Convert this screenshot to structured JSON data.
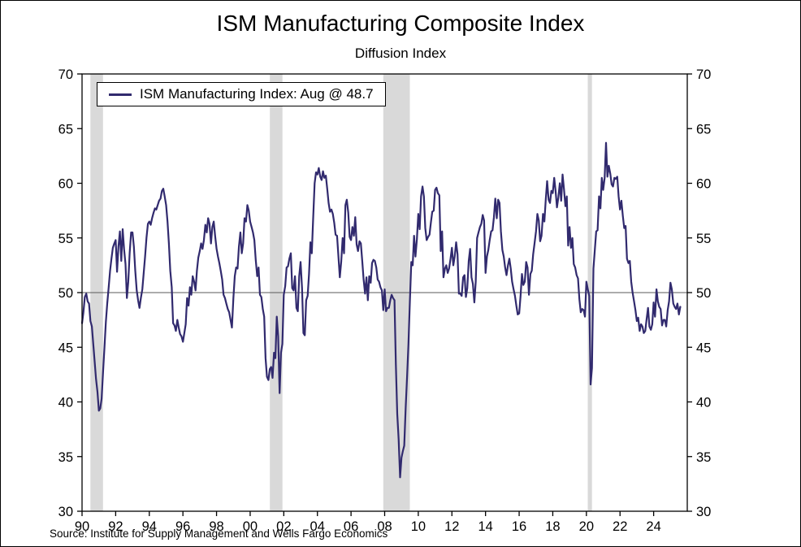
{
  "title": "ISM Manufacturing Composite Index",
  "subtitle": "Diffusion Index",
  "source": "Source: Institute for Supply Management and Wells Fargo Economics",
  "legend": {
    "label": "ISM Manufacturing Index: Aug @ 48.7"
  },
  "colors": {
    "line": "#312a6e",
    "recession_band": "#d9d9d9",
    "reference_line": "#595959",
    "axis": "#000000"
  },
  "chart_data": {
    "type": "line",
    "title": "ISM Manufacturing Composite Index",
    "subtitle": "Diffusion Index",
    "ylabel": "",
    "xlabel": "",
    "ylim": [
      30,
      70
    ],
    "xlim": [
      1990,
      2026
    ],
    "y_ticks": [
      30,
      35,
      40,
      45,
      50,
      55,
      60,
      65,
      70
    ],
    "x_ticks": [
      1990,
      1992,
      1994,
      1996,
      1998,
      2000,
      2002,
      2004,
      2006,
      2008,
      2010,
      2012,
      2014,
      2016,
      2018,
      2020,
      2022,
      2024
    ],
    "x_tick_labels": [
      "90",
      "92",
      "94",
      "96",
      "98",
      "00",
      "02",
      "04",
      "06",
      "08",
      "10",
      "12",
      "14",
      "16",
      "18",
      "20",
      "22",
      "24"
    ],
    "grid": "off",
    "legend_position": "top-left",
    "reference_line": 50,
    "recession_bands": [
      [
        1990.5,
        1991.25
      ],
      [
        2001.17,
        2001.92
      ],
      [
        2007.92,
        2009.5
      ],
      [
        2020.08,
        2020.33
      ]
    ],
    "series": [
      {
        "name": "ISM Manufacturing Index",
        "latest_label": "Aug @ 48.7",
        "frequency": "monthly",
        "start_year": 1990,
        "start_month": 1,
        "values": [
          47.2,
          48.2,
          49.6,
          49.9,
          49.2,
          49.0,
          47.4,
          46.9,
          45.3,
          43.7,
          42.1,
          40.9,
          39.2,
          39.4,
          40.3,
          42.8,
          45.0,
          47.3,
          49.0,
          50.5,
          52.0,
          53.1,
          54.1,
          54.5,
          54.8,
          51.9,
          54.2,
          55.6,
          52.9,
          55.8,
          54.0,
          52.6,
          49.5,
          51.0,
          53.6,
          55.5,
          55.5,
          54.2,
          52.0,
          50.2,
          49.3,
          48.6,
          49.5,
          50.3,
          51.8,
          53.3,
          55.0,
          56.3,
          56.5,
          56.2,
          56.8,
          57.3,
          57.7,
          57.6,
          58.0,
          58.4,
          58.6,
          59.3,
          59.5,
          58.8,
          58.0,
          56.5,
          54.5,
          52.0,
          50.5,
          47.2,
          47.0,
          46.5,
          47.5,
          46.8,
          46.2,
          46.0,
          45.5,
          46.3,
          47.1,
          49.5,
          48.8,
          50.5,
          49.8,
          51.5,
          51.0,
          50.2,
          52.0,
          53.2,
          53.8,
          54.5,
          54.0,
          54.8,
          56.2,
          55.5,
          56.8,
          56.3,
          54.5,
          56.0,
          56.5,
          55.2,
          54.0,
          53.3,
          52.7,
          52.0,
          51.2,
          49.8,
          49.5,
          49.0,
          48.5,
          48.2,
          47.5,
          46.8,
          49.5,
          51.5,
          52.3,
          52.2,
          54.2,
          55.5,
          53.6,
          54.5,
          56.8,
          56.5,
          58.0,
          57.5,
          56.5,
          56.0,
          55.5,
          54.8,
          53.0,
          51.5,
          52.3,
          49.8,
          49.6,
          48.5,
          47.8,
          44.0,
          42.3,
          42.0,
          43.0,
          43.2,
          42.2,
          44.5,
          44.0,
          47.8,
          46.0,
          40.8,
          44.5,
          45.3,
          49.8,
          50.6,
          52.3,
          52.4,
          53.1,
          53.6,
          50.4,
          50.2,
          51.5,
          48.6,
          48.3,
          51.5,
          52.8,
          50.4,
          46.3,
          46.1,
          49.3,
          49.7,
          51.7,
          54.6,
          53.6,
          56.8,
          60.0,
          61.0,
          60.8,
          61.4,
          60.6,
          60.3,
          61.1,
          60.5,
          60.7,
          59.5,
          58.2,
          57.4,
          57.6,
          57.2,
          56.4,
          55.3,
          55.2,
          53.3,
          51.4,
          52.8,
          55.0,
          53.6,
          58.0,
          58.5,
          57.3,
          55.1,
          54.8,
          56.0,
          55.2,
          56.9,
          54.4,
          53.8,
          54.7,
          54.5,
          52.9,
          51.2,
          49.9,
          51.4,
          49.3,
          51.5,
          50.9,
          52.7,
          53.0,
          52.9,
          52.3,
          51.2,
          51.0,
          50.5,
          50.2,
          48.4,
          50.3,
          48.3,
          48.6,
          48.6,
          49.3,
          49.8,
          49.5,
          49.3,
          43.4,
          38.9,
          36.6,
          33.1,
          34.9,
          35.5,
          36.0,
          39.5,
          42.3,
          45.3,
          49.1,
          52.8,
          52.5,
          55.2,
          53.3,
          54.9,
          57.2,
          55.8,
          58.8,
          59.7,
          58.8,
          55.9,
          54.8,
          55.1,
          55.3,
          56.4,
          57.4,
          57.5,
          59.4,
          59.6,
          59.1,
          58.9,
          53.8,
          55.6,
          51.4,
          52.2,
          52.5,
          51.8,
          52.2,
          53.1,
          54.1,
          52.5,
          53.3,
          54.6,
          53.5,
          49.9,
          49.9,
          49.7,
          51.4,
          51.6,
          49.6,
          50.4,
          52.9,
          54.0,
          51.4,
          50.8,
          49.1,
          51.0,
          55.0,
          55.5,
          56.0,
          56.3,
          57.1,
          56.6,
          51.8,
          53.3,
          53.9,
          54.8,
          55.6,
          55.7,
          56.9,
          58.6,
          56.8,
          58.5,
          58.2,
          55.6,
          53.9,
          53.3,
          52.3,
          51.6,
          52.5,
          53.1,
          52.2,
          51.0,
          50.3,
          49.7,
          48.8,
          48.0,
          48.1,
          49.7,
          51.7,
          50.7,
          51.0,
          52.8,
          52.3,
          49.8,
          51.7,
          52.0,
          53.5,
          54.5,
          55.6,
          57.2,
          56.6,
          54.7,
          55.2,
          57.2,
          56.5,
          58.5,
          60.2,
          58.5,
          58.2,
          59.3,
          59.1,
          60.5,
          59.3,
          57.8,
          58.7,
          60.0,
          58.4,
          60.8,
          59.5,
          57.9,
          58.8,
          54.3,
          56.0,
          54.1,
          55.0,
          52.6,
          52.3,
          51.6,
          51.3,
          49.4,
          48.2,
          48.5,
          48.4,
          47.8,
          51.0,
          50.3,
          49.7,
          41.6,
          43.1,
          52.2,
          53.9,
          55.6,
          55.7,
          58.8,
          57.7,
          60.5,
          59.4,
          60.5,
          63.7,
          60.6,
          61.6,
          60.9,
          59.9,
          59.7,
          60.5,
          60.4,
          60.6,
          58.8,
          57.6,
          58.4,
          57.0,
          55.9,
          56.1,
          53.1,
          52.7,
          52.9,
          51.0,
          50.0,
          49.2,
          48.4,
          47.4,
          47.7,
          46.5,
          47.1,
          46.9,
          46.3,
          46.5,
          47.6,
          48.6,
          46.9,
          46.6,
          47.1,
          49.1,
          47.8,
          50.3,
          49.2,
          48.7,
          48.5,
          47.0,
          47.5,
          47.5,
          46.9,
          48.4,
          49.2,
          50.9,
          50.3,
          49.0,
          48.7,
          48.5,
          49.0,
          48.0,
          48.7
        ]
      }
    ]
  }
}
